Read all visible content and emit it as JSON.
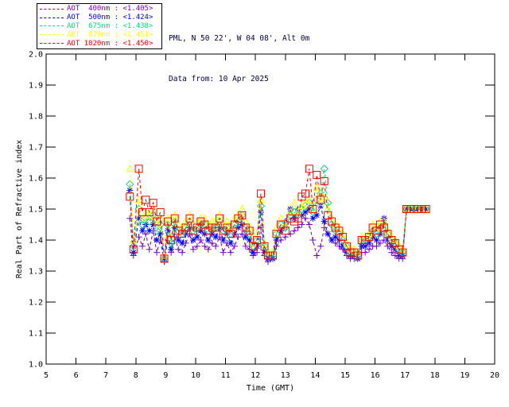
{
  "header": {
    "location_line": "PML, N 50 22', W 04 08', Alt 0m",
    "date_line": "Data from: 10 Apr 2025",
    "text_color": "#000044"
  },
  "legend": {
    "entries": [
      {
        "label": "AOT  400nm : <1.405>",
        "color": "#7D00C8"
      },
      {
        "label": "AOT  500nm : <1.424>",
        "color": "#0000FF"
      },
      {
        "label": "AOT  675nm : <1.438>",
        "color": "#00E080"
      },
      {
        "label": "AOT  870nm : <1.451>",
        "color": "#FFFF00"
      },
      {
        "label": "AOT 1020nm : <1.450>",
        "color": "#FF0000"
      }
    ]
  },
  "chart_data": {
    "type": "line",
    "title": "",
    "xlabel": "Time (GMT)",
    "ylabel": "Real Part of Refractive index",
    "xlim": [
      5,
      20
    ],
    "ylim": [
      1.0,
      2.0
    ],
    "xticks": [
      5,
      6,
      7,
      8,
      9,
      10,
      11,
      12,
      13,
      14,
      15,
      16,
      17,
      18,
      19,
      20
    ],
    "yticks": [
      1.0,
      1.1,
      1.2,
      1.3,
      1.4,
      1.5,
      1.6,
      1.7,
      1.8,
      1.9,
      2.0
    ],
    "grid": false,
    "legend_position": "top-left",
    "x": [
      7.8,
      7.92,
      8.1,
      8.22,
      8.33,
      8.45,
      8.58,
      8.7,
      8.82,
      8.95,
      9.07,
      9.18,
      9.3,
      9.42,
      9.55,
      9.67,
      9.8,
      9.92,
      10.05,
      10.17,
      10.3,
      10.42,
      10.55,
      10.67,
      10.8,
      10.92,
      11.05,
      11.17,
      11.3,
      11.42,
      11.55,
      11.67,
      11.8,
      11.92,
      12.05,
      12.18,
      12.3,
      12.42,
      12.58,
      12.7,
      12.85,
      13.0,
      13.17,
      13.3,
      13.42,
      13.55,
      13.67,
      13.8,
      13.92,
      14.05,
      14.18,
      14.3,
      14.42,
      14.55,
      14.67,
      14.8,
      14.92,
      15.05,
      15.17,
      15.3,
      15.42,
      15.55,
      15.67,
      15.8,
      15.92,
      16.05,
      16.17,
      16.3,
      16.42,
      16.55,
      16.67,
      16.8,
      16.92,
      17.05,
      17.2,
      17.4,
      17.55,
      17.7
    ],
    "series": [
      {
        "name": "AOT 400nm",
        "wavelength_nm": 400,
        "mean_label": "<1.405>",
        "color": "#7D00C8",
        "marker": "plus",
        "values": [
          1.47,
          1.35,
          1.41,
          1.38,
          1.42,
          1.37,
          1.43,
          1.36,
          1.4,
          1.33,
          1.4,
          1.36,
          1.41,
          1.37,
          1.36,
          1.39,
          1.42,
          1.37,
          1.38,
          1.4,
          1.38,
          1.37,
          1.39,
          1.38,
          1.41,
          1.36,
          1.39,
          1.36,
          1.38,
          1.41,
          1.42,
          1.38,
          1.37,
          1.35,
          1.36,
          1.44,
          1.35,
          1.33,
          1.34,
          1.38,
          1.4,
          1.41,
          1.42,
          1.43,
          1.44,
          1.45,
          1.47,
          1.45,
          1.4,
          1.35,
          1.38,
          1.44,
          1.42,
          1.4,
          1.39,
          1.38,
          1.37,
          1.35,
          1.34,
          1.34,
          1.34,
          1.36,
          1.36,
          1.37,
          1.38,
          1.38,
          1.39,
          1.4,
          1.38,
          1.36,
          1.35,
          1.34,
          1.34,
          1.5,
          1.5,
          1.5,
          1.5,
          1.5
        ]
      },
      {
        "name": "AOT 500nm",
        "wavelength_nm": 500,
        "mean_label": "<1.424>",
        "color": "#0000FF",
        "marker": "asterisk",
        "values": [
          1.56,
          1.36,
          1.47,
          1.43,
          1.45,
          1.43,
          1.45,
          1.4,
          1.42,
          1.34,
          1.43,
          1.37,
          1.44,
          1.4,
          1.39,
          1.42,
          1.44,
          1.4,
          1.41,
          1.43,
          1.42,
          1.4,
          1.42,
          1.41,
          1.44,
          1.4,
          1.42,
          1.39,
          1.42,
          1.44,
          1.45,
          1.41,
          1.4,
          1.36,
          1.38,
          1.49,
          1.36,
          1.34,
          1.34,
          1.4,
          1.43,
          1.46,
          1.5,
          1.47,
          1.5,
          1.48,
          1.49,
          1.5,
          1.47,
          1.48,
          1.51,
          1.46,
          1.42,
          1.4,
          1.41,
          1.4,
          1.38,
          1.36,
          1.35,
          1.35,
          1.34,
          1.38,
          1.38,
          1.39,
          1.41,
          1.4,
          1.42,
          1.47,
          1.4,
          1.38,
          1.37,
          1.35,
          1.35,
          1.5,
          1.5,
          1.5,
          1.5,
          1.5
        ]
      },
      {
        "name": "AOT 675nm",
        "wavelength_nm": 675,
        "mean_label": "<1.438>",
        "color": "#00E080",
        "marker": "diamond",
        "values": [
          1.58,
          1.38,
          1.5,
          1.45,
          1.47,
          1.46,
          1.48,
          1.43,
          1.45,
          1.34,
          1.45,
          1.39,
          1.46,
          1.43,
          1.42,
          1.44,
          1.46,
          1.43,
          1.44,
          1.45,
          1.45,
          1.43,
          1.44,
          1.44,
          1.46,
          1.43,
          1.44,
          1.42,
          1.45,
          1.46,
          1.48,
          1.44,
          1.42,
          1.38,
          1.4,
          1.51,
          1.38,
          1.35,
          1.35,
          1.42,
          1.45,
          1.44,
          1.48,
          1.49,
          1.48,
          1.5,
          1.51,
          1.52,
          1.49,
          1.53,
          1.55,
          1.63,
          1.52,
          1.45,
          1.43,
          1.42,
          1.4,
          1.38,
          1.36,
          1.36,
          1.35,
          1.4,
          1.4,
          1.41,
          1.43,
          1.42,
          1.44,
          1.45,
          1.42,
          1.4,
          1.39,
          1.37,
          1.36,
          1.5,
          1.5,
          1.5,
          1.5,
          1.5
        ]
      },
      {
        "name": "AOT 870nm",
        "wavelength_nm": 870,
        "mean_label": "<1.451>",
        "color": "#FFFF00",
        "marker": "triangle",
        "values": [
          1.63,
          1.4,
          1.53,
          1.47,
          1.49,
          1.48,
          1.5,
          1.45,
          1.47,
          1.35,
          1.47,
          1.41,
          1.48,
          1.45,
          1.44,
          1.46,
          1.48,
          1.45,
          1.46,
          1.47,
          1.47,
          1.45,
          1.46,
          1.46,
          1.48,
          1.45,
          1.46,
          1.44,
          1.47,
          1.48,
          1.5,
          1.46,
          1.44,
          1.39,
          1.42,
          1.53,
          1.39,
          1.36,
          1.36,
          1.44,
          1.47,
          1.45,
          1.49,
          1.52,
          1.49,
          1.51,
          1.52,
          1.53,
          1.5,
          1.57,
          1.52,
          1.54,
          1.5,
          1.47,
          1.45,
          1.44,
          1.42,
          1.39,
          1.37,
          1.37,
          1.36,
          1.41,
          1.41,
          1.42,
          1.45,
          1.44,
          1.46,
          1.46,
          1.43,
          1.41,
          1.4,
          1.38,
          1.37,
          1.5,
          1.5,
          1.5,
          1.5,
          1.5
        ]
      },
      {
        "name": "AOT 1020nm",
        "wavelength_nm": 1020,
        "mean_label": "<1.450>",
        "color": "#FF0000",
        "marker": "square",
        "values": [
          1.54,
          1.37,
          1.63,
          1.49,
          1.53,
          1.49,
          1.52,
          1.46,
          1.49,
          1.34,
          1.46,
          1.4,
          1.47,
          1.43,
          1.42,
          1.44,
          1.47,
          1.43,
          1.44,
          1.46,
          1.45,
          1.43,
          1.44,
          1.44,
          1.47,
          1.43,
          1.44,
          1.42,
          1.45,
          1.47,
          1.48,
          1.44,
          1.43,
          1.38,
          1.4,
          1.55,
          1.38,
          1.35,
          1.35,
          1.42,
          1.45,
          1.43,
          1.47,
          1.46,
          1.47,
          1.54,
          1.55,
          1.63,
          1.5,
          1.61,
          1.53,
          1.59,
          1.48,
          1.46,
          1.44,
          1.43,
          1.41,
          1.38,
          1.36,
          1.36,
          1.35,
          1.4,
          1.4,
          1.41,
          1.44,
          1.43,
          1.45,
          1.44,
          1.42,
          1.4,
          1.39,
          1.37,
          1.36,
          1.5,
          1.5,
          1.5,
          1.5,
          1.5
        ]
      }
    ]
  }
}
